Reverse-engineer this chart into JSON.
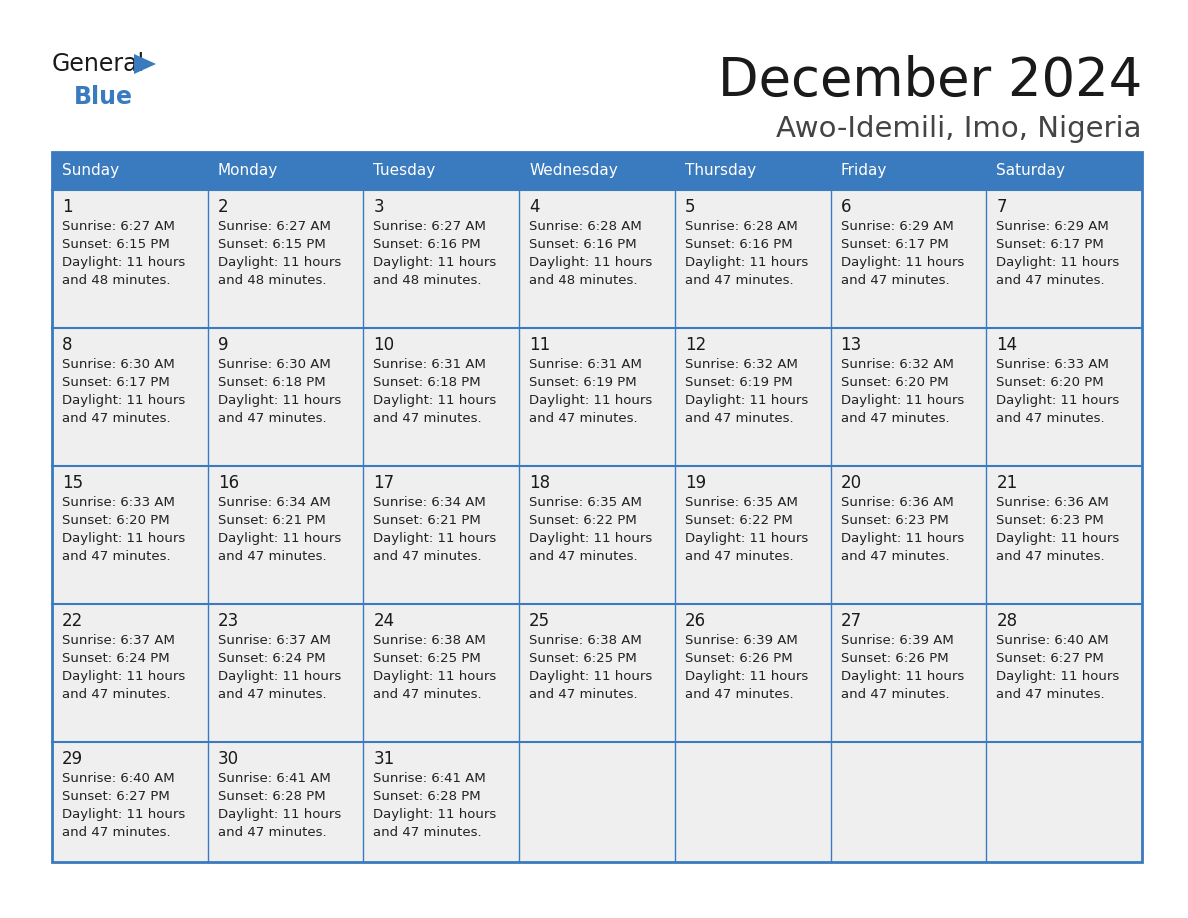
{
  "title": "December 2024",
  "subtitle": "Awo-Idemili, Imo, Nigeria",
  "header_bg": "#3a7abf",
  "header_text_color": "#ffffff",
  "cell_bg": "#efefef",
  "border_color": "#3a7abf",
  "days_of_week": [
    "Sunday",
    "Monday",
    "Tuesday",
    "Wednesday",
    "Thursday",
    "Friday",
    "Saturday"
  ],
  "title_color": "#1a1a1a",
  "subtitle_color": "#444444",
  "day_number_color": "#1a1a1a",
  "cell_text_color": "#222222",
  "calendar_data": [
    [
      {
        "day": 1,
        "sunrise": "6:27 AM",
        "sunset": "6:15 PM",
        "daylight_h": "11 hours",
        "daylight_m": "and 48 minutes."
      },
      {
        "day": 2,
        "sunrise": "6:27 AM",
        "sunset": "6:15 PM",
        "daylight_h": "11 hours",
        "daylight_m": "and 48 minutes."
      },
      {
        "day": 3,
        "sunrise": "6:27 AM",
        "sunset": "6:16 PM",
        "daylight_h": "11 hours",
        "daylight_m": "and 48 minutes."
      },
      {
        "day": 4,
        "sunrise": "6:28 AM",
        "sunset": "6:16 PM",
        "daylight_h": "11 hours",
        "daylight_m": "and 48 minutes."
      },
      {
        "day": 5,
        "sunrise": "6:28 AM",
        "sunset": "6:16 PM",
        "daylight_h": "11 hours",
        "daylight_m": "and 47 minutes."
      },
      {
        "day": 6,
        "sunrise": "6:29 AM",
        "sunset": "6:17 PM",
        "daylight_h": "11 hours",
        "daylight_m": "and 47 minutes."
      },
      {
        "day": 7,
        "sunrise": "6:29 AM",
        "sunset": "6:17 PM",
        "daylight_h": "11 hours",
        "daylight_m": "and 47 minutes."
      }
    ],
    [
      {
        "day": 8,
        "sunrise": "6:30 AM",
        "sunset": "6:17 PM",
        "daylight_h": "11 hours",
        "daylight_m": "and 47 minutes."
      },
      {
        "day": 9,
        "sunrise": "6:30 AM",
        "sunset": "6:18 PM",
        "daylight_h": "11 hours",
        "daylight_m": "and 47 minutes."
      },
      {
        "day": 10,
        "sunrise": "6:31 AM",
        "sunset": "6:18 PM",
        "daylight_h": "11 hours",
        "daylight_m": "and 47 minutes."
      },
      {
        "day": 11,
        "sunrise": "6:31 AM",
        "sunset": "6:19 PM",
        "daylight_h": "11 hours",
        "daylight_m": "and 47 minutes."
      },
      {
        "day": 12,
        "sunrise": "6:32 AM",
        "sunset": "6:19 PM",
        "daylight_h": "11 hours",
        "daylight_m": "and 47 minutes."
      },
      {
        "day": 13,
        "sunrise": "6:32 AM",
        "sunset": "6:20 PM",
        "daylight_h": "11 hours",
        "daylight_m": "and 47 minutes."
      },
      {
        "day": 14,
        "sunrise": "6:33 AM",
        "sunset": "6:20 PM",
        "daylight_h": "11 hours",
        "daylight_m": "and 47 minutes."
      }
    ],
    [
      {
        "day": 15,
        "sunrise": "6:33 AM",
        "sunset": "6:20 PM",
        "daylight_h": "11 hours",
        "daylight_m": "and 47 minutes."
      },
      {
        "day": 16,
        "sunrise": "6:34 AM",
        "sunset": "6:21 PM",
        "daylight_h": "11 hours",
        "daylight_m": "and 47 minutes."
      },
      {
        "day": 17,
        "sunrise": "6:34 AM",
        "sunset": "6:21 PM",
        "daylight_h": "11 hours",
        "daylight_m": "and 47 minutes."
      },
      {
        "day": 18,
        "sunrise": "6:35 AM",
        "sunset": "6:22 PM",
        "daylight_h": "11 hours",
        "daylight_m": "and 47 minutes."
      },
      {
        "day": 19,
        "sunrise": "6:35 AM",
        "sunset": "6:22 PM",
        "daylight_h": "11 hours",
        "daylight_m": "and 47 minutes."
      },
      {
        "day": 20,
        "sunrise": "6:36 AM",
        "sunset": "6:23 PM",
        "daylight_h": "11 hours",
        "daylight_m": "and 47 minutes."
      },
      {
        "day": 21,
        "sunrise": "6:36 AM",
        "sunset": "6:23 PM",
        "daylight_h": "11 hours",
        "daylight_m": "and 47 minutes."
      }
    ],
    [
      {
        "day": 22,
        "sunrise": "6:37 AM",
        "sunset": "6:24 PM",
        "daylight_h": "11 hours",
        "daylight_m": "and 47 minutes."
      },
      {
        "day": 23,
        "sunrise": "6:37 AM",
        "sunset": "6:24 PM",
        "daylight_h": "11 hours",
        "daylight_m": "and 47 minutes."
      },
      {
        "day": 24,
        "sunrise": "6:38 AM",
        "sunset": "6:25 PM",
        "daylight_h": "11 hours",
        "daylight_m": "and 47 minutes."
      },
      {
        "day": 25,
        "sunrise": "6:38 AM",
        "sunset": "6:25 PM",
        "daylight_h": "11 hours",
        "daylight_m": "and 47 minutes."
      },
      {
        "day": 26,
        "sunrise": "6:39 AM",
        "sunset": "6:26 PM",
        "daylight_h": "11 hours",
        "daylight_m": "and 47 minutes."
      },
      {
        "day": 27,
        "sunrise": "6:39 AM",
        "sunset": "6:26 PM",
        "daylight_h": "11 hours",
        "daylight_m": "and 47 minutes."
      },
      {
        "day": 28,
        "sunrise": "6:40 AM",
        "sunset": "6:27 PM",
        "daylight_h": "11 hours",
        "daylight_m": "and 47 minutes."
      }
    ],
    [
      {
        "day": 29,
        "sunrise": "6:40 AM",
        "sunset": "6:27 PM",
        "daylight_h": "11 hours",
        "daylight_m": "and 47 minutes."
      },
      {
        "day": 30,
        "sunrise": "6:41 AM",
        "sunset": "6:28 PM",
        "daylight_h": "11 hours",
        "daylight_m": "and 47 minutes."
      },
      {
        "day": 31,
        "sunrise": "6:41 AM",
        "sunset": "6:28 PM",
        "daylight_h": "11 hours",
        "daylight_m": "and 47 minutes."
      },
      null,
      null,
      null,
      null
    ]
  ],
  "logo_text_general": "General",
  "logo_text_blue": "Blue",
  "logo_triangle_color": "#3a7abf",
  "logo_general_color": "#1a1a1a"
}
